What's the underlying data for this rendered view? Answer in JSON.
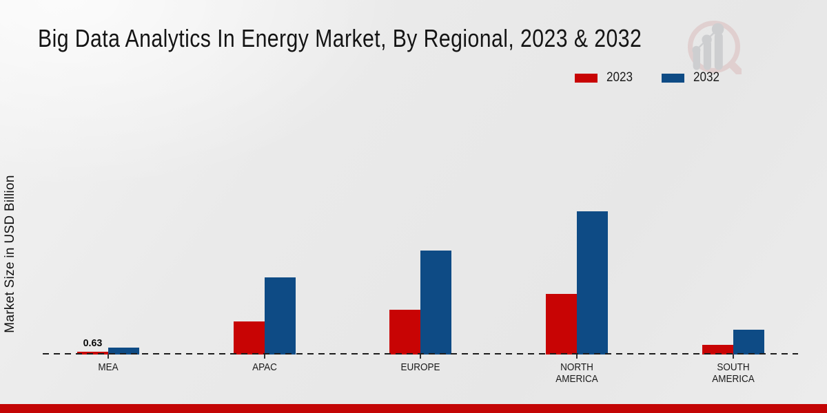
{
  "title": "Big Data Analytics In Energy Market, By Regional, 2023 & 2032",
  "legend": [
    {
      "label": "2023",
      "color": "#c80404"
    },
    {
      "label": "2032",
      "color": "#0e4b85"
    }
  ],
  "colors": {
    "series_2023": "#c80404",
    "series_2032": "#0e4b85",
    "footer_bar": "#c30505",
    "baseline": "#1c1c1c",
    "watermark_ring": "#d9b5b5",
    "watermark_gray": "#c9cacc"
  },
  "watermark_icon": "magnifier-bar-chart-logo",
  "chart_data": {
    "type": "bar",
    "title": "Big Data Analytics In Energy Market, By Regional, 2023 & 2032",
    "xlabel": "",
    "ylabel": "Market Size in USD Billion",
    "categories": [
      "MEA",
      "APAC",
      "EUROPE",
      "NORTH AMERICA",
      "SOUTH AMERICA"
    ],
    "series": [
      {
        "name": "2023",
        "color": "#c80404",
        "values": [
          0.63,
          7.6,
          10.3,
          13.9,
          2.2
        ]
      },
      {
        "name": "2032",
        "color": "#0e4b85",
        "values": [
          1.5,
          17.6,
          23.8,
          32.7,
          5.7
        ]
      }
    ],
    "annotations": [
      {
        "category": "MEA",
        "series": "2023",
        "text": "0.63"
      }
    ],
    "ylim": [
      0,
      35
    ],
    "grid": false,
    "y_axis_ticks_visible": false,
    "baseline_style": "dashed",
    "legend_position": "top-right"
  }
}
